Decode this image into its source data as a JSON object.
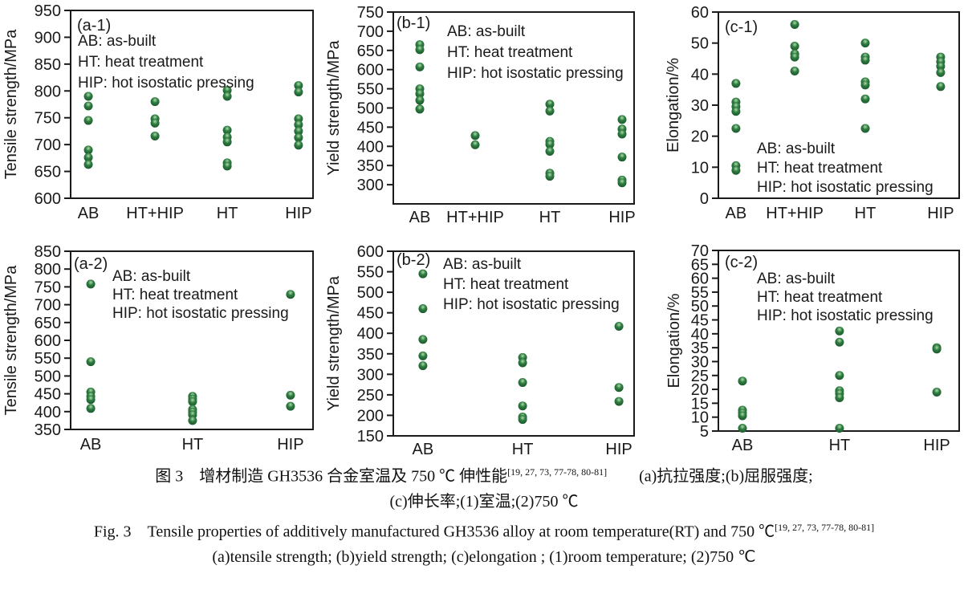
{
  "figure": {
    "caption_cn": {
      "line1": "图 3　增材制造 GH3536 合金室温及 750 ℃ 伸性能",
      "refs": "[19, 27, 73, 77-78, 80-81]",
      "line1_tail": "　　(a)抗拉强度;(b)屈服强度;",
      "line2": "(c)伸长率;(1)室温;(2)750 ℃"
    },
    "caption_en": {
      "line1": "Fig. 3　Tensile properties of additively manufactured GH3536 alloy at room temperature(RT) and 750 ℃",
      "refs": "[19, 27, 73, 77-78, 80-81]",
      "line2": "(a)tensile strength; (b)yield strength; (c)elongation ; (1)room temperature; (2)750 ℃"
    },
    "point_color": {
      "base": "#2f7d40",
      "highlight": "#aedcae",
      "edge": "#17512a"
    },
    "axis_color": "#1a1a1a"
  },
  "chart_data": [
    {
      "id": "a1",
      "type": "scatter",
      "panel": "(a-1)",
      "ylabel": "Tensile strength/MPa",
      "ylim": [
        600,
        950
      ],
      "ytick_step": 50,
      "ytick_min": 600,
      "categories": [
        "AB",
        "HT+HIP",
        "HT",
        "HIP"
      ],
      "values": [
        [
          790,
          772,
          745,
          690,
          676,
          663
        ],
        [
          780,
          748,
          740,
          716
        ],
        [
          801,
          790,
          727,
          714,
          705,
          666,
          660
        ],
        [
          810,
          798,
          748,
          737,
          725,
          713,
          699
        ]
      ],
      "legend": [
        "AB: as-built",
        "HT: heat treatment",
        "HIP: hot isostatic pressing"
      ],
      "legend_pos": "top-left"
    },
    {
      "id": "b1",
      "type": "scatter",
      "panel": "(b-1)",
      "ylabel": "Yield strength/MPa",
      "ylim": [
        250,
        750
      ],
      "ytick_step": 50,
      "ytick_min": 300,
      "categories": [
        "AB",
        "HT+HIP",
        "HT",
        "HIP"
      ],
      "values": [
        [
          665,
          652,
          607,
          550,
          537,
          520,
          497
        ],
        [
          428,
          404
        ],
        [
          510,
          492,
          413,
          405,
          387,
          330,
          322
        ],
        [
          470,
          445,
          432,
          372,
          312,
          305
        ]
      ],
      "legend": [
        "AB: as-built",
        "HT: heat treatment",
        "HIP: hot isostatic pressing"
      ],
      "legend_pos": "top-right-of-panel"
    },
    {
      "id": "c1",
      "type": "scatter",
      "panel": "(c-1)",
      "ylabel": "Elongation/%",
      "ylim": [
        0,
        60
      ],
      "ytick_step": 10,
      "ytick_min": 0,
      "categories": [
        "AB",
        "HT+HIP",
        "HT",
        "HIP"
      ],
      "values": [
        [
          37,
          31,
          29.5,
          28,
          22.5,
          10.5,
          9
        ],
        [
          56,
          49,
          46.5,
          45.5,
          41
        ],
        [
          50,
          45.5,
          44.5,
          37.5,
          36.5,
          32,
          22.5
        ],
        [
          45.5,
          44,
          42.5,
          40.5,
          36
        ]
      ],
      "legend": [
        "AB: as-built",
        "HT: heat treatment",
        "HIP: hot isostatic pressing"
      ],
      "legend_pos": "bottom-left"
    },
    {
      "id": "a2",
      "type": "scatter",
      "panel": "(a-2)",
      "ylabel": "Tensile strength/MPa",
      "ylim": [
        350,
        850
      ],
      "ytick_step": 50,
      "ytick_min": 350,
      "categories": [
        "AB",
        "HT",
        "HIP"
      ],
      "values": [
        [
          758,
          540,
          455,
          443,
          434,
          409
        ],
        [
          443,
          435,
          428,
          406,
          399,
          391,
          375
        ],
        [
          729,
          446,
          415
        ]
      ],
      "legend": [
        "AB: as-built",
        "HT: heat treatment",
        "HIP: hot isostatic pressing"
      ],
      "legend_pos": "top-right-of-panel"
    },
    {
      "id": "b2",
      "type": "scatter",
      "panel": "(b-2)",
      "ylabel": "Yield strength/MPa",
      "ylim": [
        150,
        600
      ],
      "ytick_step": 50,
      "ytick_min": 150,
      "categories": [
        "AB",
        "HT",
        "HIP"
      ],
      "values": [
        [
          545,
          460,
          385,
          345,
          321
        ],
        [
          341,
          328,
          280,
          223,
          196,
          190
        ],
        [
          417,
          268,
          234
        ]
      ],
      "legend": [
        "AB: as-built",
        "HT: heat treatment",
        "HIP: hot isostatic pressing"
      ],
      "legend_pos": "top-right-of-panel"
    },
    {
      "id": "c2",
      "type": "scatter",
      "panel": "(c-2)",
      "ylabel": "Elongation/%",
      "ylim": [
        5,
        70
      ],
      "ytick_step": 5,
      "ytick_min": 5,
      "categories": [
        "AB",
        "HT",
        "HIP"
      ],
      "values": [
        [
          23,
          12.5,
          11.5,
          10.5,
          6
        ],
        [
          41,
          37,
          25,
          19.5,
          18.5,
          17,
          6
        ],
        [
          35,
          34.5,
          19
        ]
      ],
      "legend": [
        "AB: as-built",
        "HT: heat treatment",
        "HIP: hot isostatic pressing"
      ],
      "legend_pos": "top-left-indent"
    }
  ]
}
